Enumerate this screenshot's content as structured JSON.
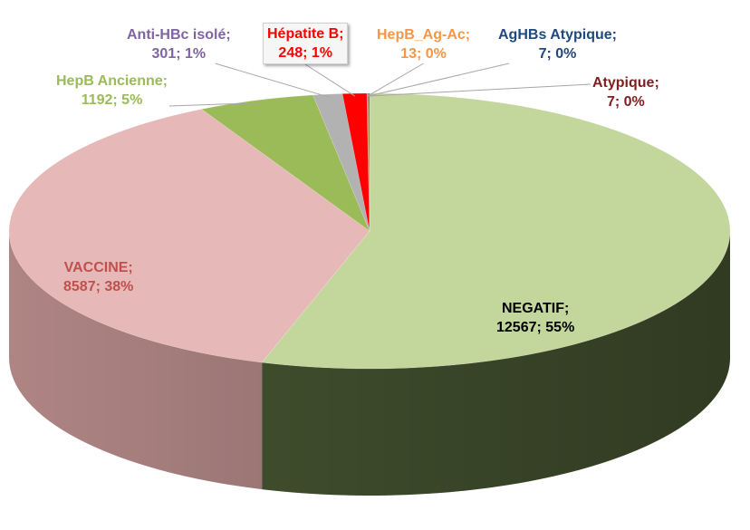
{
  "chart_data": {
    "type": "pie",
    "title": "",
    "slices": [
      {
        "category": "NEGATIF",
        "value": 12567,
        "percent": "55%",
        "label_line1": "NEGATIF;",
        "label_line2": "12567; 55%",
        "color": "#c3d69b",
        "side": "#4a5a34",
        "label_color": "#000000"
      },
      {
        "category": "VACCINE",
        "value": 8587,
        "percent": "38%",
        "label_line1": "VACCINE;",
        "label_line2": "8587; 38%",
        "color": "#e6b9b8",
        "side": "#b88c8b",
        "label_color": "#c0504d"
      },
      {
        "category": "HepB Ancienne",
        "value": 1192,
        "percent": "5%",
        "label_line1": "HepB Ancienne;",
        "label_line2": "1192; 5%",
        "color": "#9bbb59",
        "side": "#6e8840",
        "label_color": "#9bbb59"
      },
      {
        "category": "Anti-HBc isolé",
        "value": 301,
        "percent": "1%",
        "label_line1": "Anti-HBc isolé;",
        "label_line2": "301; 1%",
        "color": "#b2b2b2",
        "side": "#808080",
        "label_color": "#8064a2"
      },
      {
        "category": "Hépatite B",
        "value": 248,
        "percent": "1%",
        "label_line1": "Hépatite B;",
        "label_line2": "248; 1%",
        "color": "#ff0000",
        "side": "#b00000",
        "label_color": "#ff0000"
      },
      {
        "category": "HepB_Ag-Ac",
        "value": 13,
        "percent": "0%",
        "label_line1": "HepB_Ag-Ac;",
        "label_line2": "13; 0%",
        "color": "#f79646",
        "side": "#b5682c",
        "label_color": "#f79646"
      },
      {
        "category": "AgHBs Atypique",
        "value": 7,
        "percent": "0%",
        "label_line1": "AgHBs Atypique;",
        "label_line2": "7; 0%",
        "color": "#1f497d",
        "side": "#132d4d",
        "label_color": "#1f497d"
      },
      {
        "category": "Atypique",
        "value": 7,
        "percent": "0%",
        "label_line1": "Atypique;",
        "label_line2": "7; 0%",
        "color": "#7f1f1f",
        "side": "#4f1212",
        "label_color": "#7f1f1f"
      }
    ],
    "legend": "none",
    "style": "3d-pie"
  }
}
